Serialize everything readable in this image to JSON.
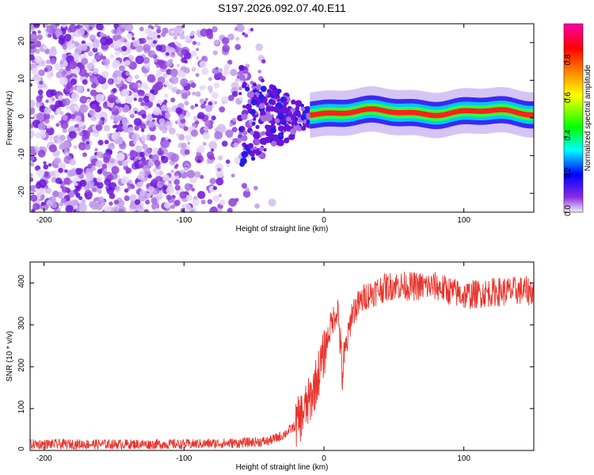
{
  "title": "S197.2026.092.07.40.E11",
  "chart_data": [
    {
      "type": "heatmap",
      "xlabel": "Height of straight line (km)",
      "ylabel": "Frequency (Hz)",
      "xlim": [
        -210,
        150
      ],
      "ylim": [
        -25,
        25
      ],
      "xticks": [
        -200,
        -100,
        0,
        100
      ],
      "yticks": [
        -20,
        -10,
        0,
        10,
        20
      ],
      "colorbar": {
        "label": "Normalized spectral amplitude",
        "range": [
          0,
          1
        ],
        "ticks": [
          0.0,
          0.2,
          0.4,
          0.6,
          0.8
        ],
        "tick_labels": [
          "0.0",
          "0.2",
          "0.4",
          "0.6",
          "0.8"
        ]
      },
      "features": {
        "noise_region_x": [
          -210,
          -35
        ],
        "transition_x": [
          -60,
          -10
        ],
        "signal_band_x": [
          -10,
          150
        ],
        "signal_band_freq_hz": [
          0,
          3
        ]
      }
    },
    {
      "type": "line",
      "xlabel": "Height of straight line (km)",
      "ylabel": "SNR (10 * v/v)",
      "xlim": [
        -210,
        150
      ],
      "ylim": [
        0,
        450
      ],
      "xticks": [
        -200,
        -100,
        0,
        100
      ],
      "yticks": [
        0,
        100,
        200,
        300,
        400
      ],
      "color": "#e8342c",
      "series": [
        {
          "name": "SNR",
          "x": [
            -210,
            -150,
            -100,
            -60,
            -40,
            -30,
            -20,
            -10,
            -5,
            0,
            5,
            10,
            13,
            20,
            30,
            40,
            50,
            60,
            80,
            100,
            120,
            140,
            150
          ],
          "values": [
            15,
            15,
            15,
            18,
            22,
            35,
            60,
            120,
            170,
            230,
            300,
            340,
            180,
            330,
            370,
            385,
            395,
            392,
            392,
            370,
            378,
            382,
            380
          ]
        }
      ]
    }
  ]
}
